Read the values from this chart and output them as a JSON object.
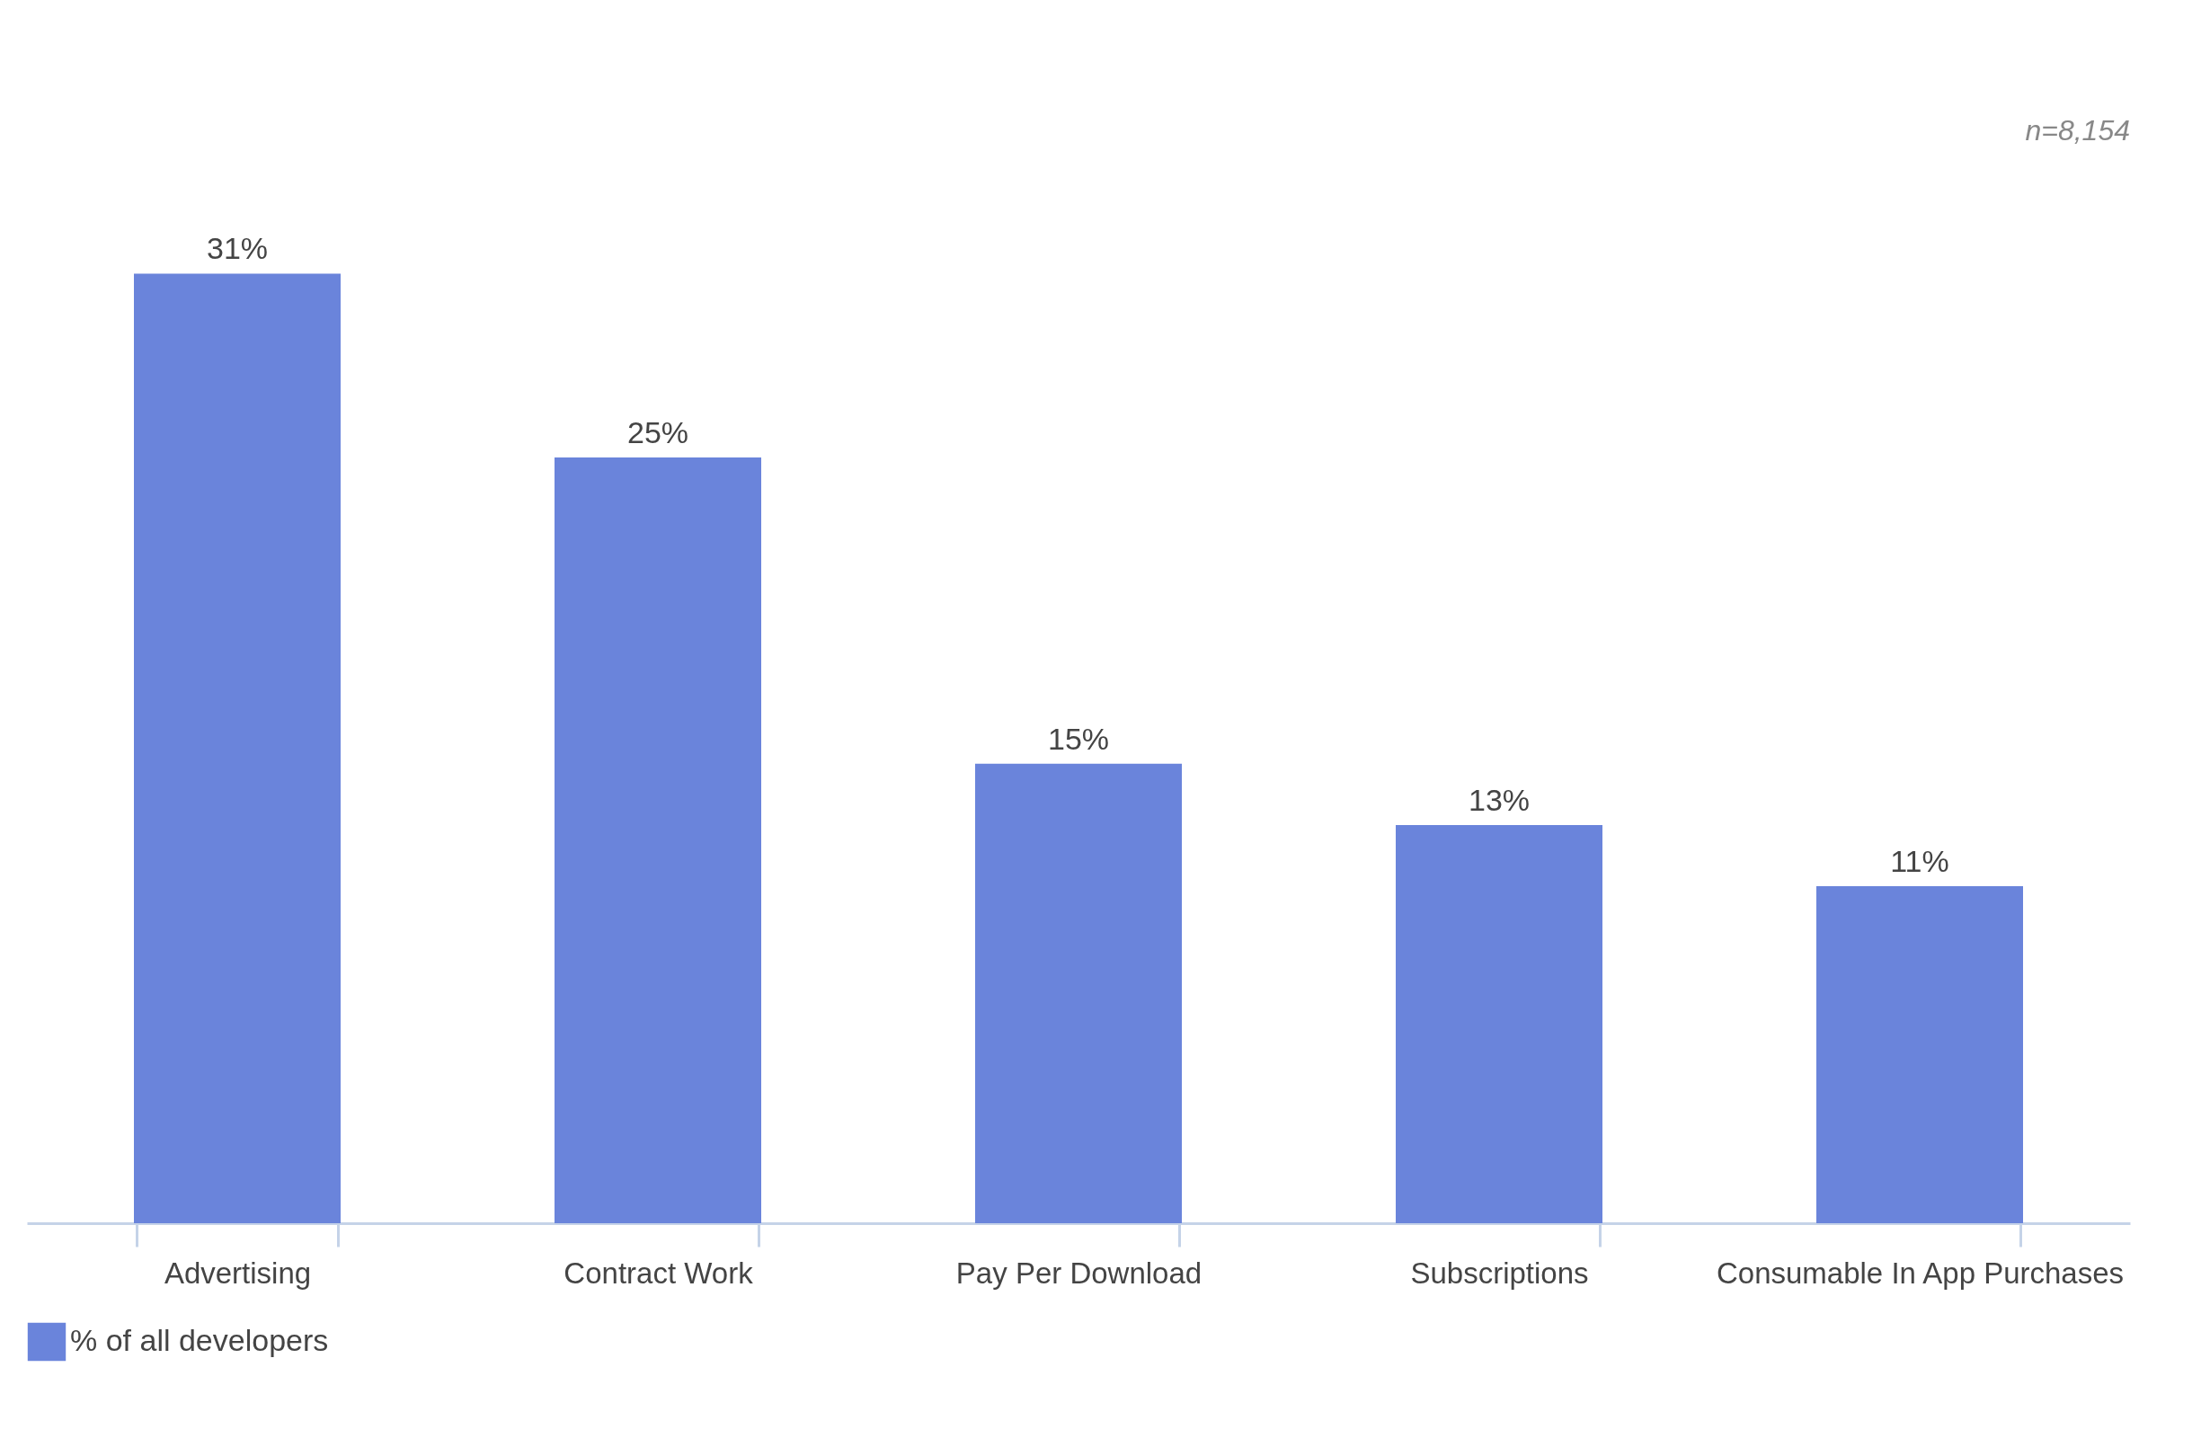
{
  "chart_data": {
    "type": "bar",
    "categories": [
      "Advertising",
      "Contract Work",
      "Pay Per Download",
      "Subscriptions",
      "Consumable In App Purchases"
    ],
    "series": [
      {
        "name": "% of all developers",
        "color": "#6a84db",
        "values": [
          31,
          25,
          15,
          13,
          11
        ],
        "value_labels": [
          "31%",
          "25%",
          "15%",
          "13%",
          "11%"
        ]
      }
    ],
    "annotations": [
      "n=8,154"
    ],
    "legend": "bottom left"
  }
}
